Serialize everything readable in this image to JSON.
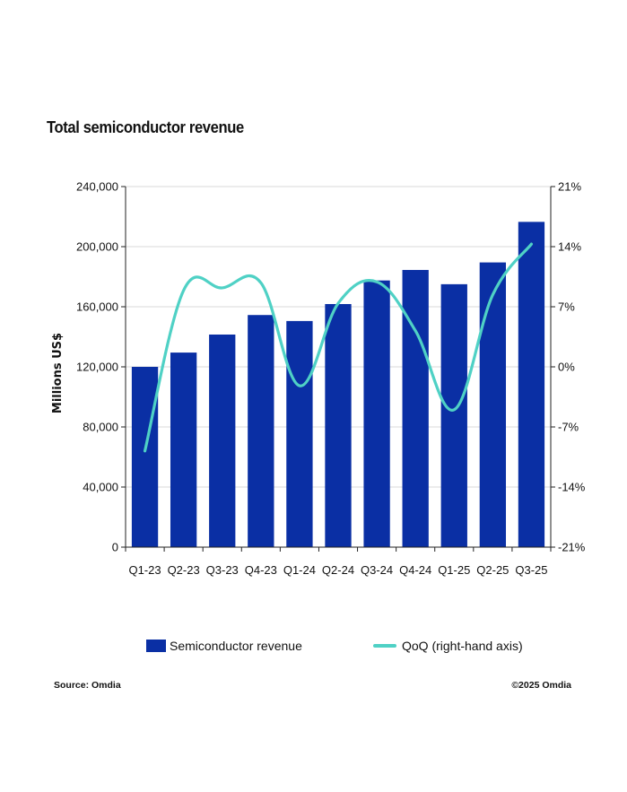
{
  "chart_data": {
    "type": "bar",
    "title": "Total semiconductor revenue",
    "categories": [
      "Q1-23",
      "Q2-23",
      "Q3-23",
      "Q4-23",
      "Q1-24",
      "Q2-24",
      "Q3-24",
      "Q4-24",
      "Q1-25",
      "Q2-25",
      "Q3-25"
    ],
    "series": [
      {
        "name": "Semiconductor revenue",
        "type": "bar",
        "axis": "left",
        "values": [
          120000,
          129500,
          141500,
          154500,
          150500,
          161800,
          177500,
          184500,
          175000,
          189500,
          216500
        ]
      },
      {
        "name": "QoQ (right-hand axis)",
        "type": "line",
        "axis": "right",
        "smooth": true,
        "values": [
          -9.8,
          8.9,
          9.2,
          9.8,
          -2.2,
          7.4,
          9.9,
          4.2,
          -5.0,
          8.4,
          14.3
        ]
      }
    ],
    "ylabel": "Millions US$",
    "ylim": [
      0,
      240000
    ],
    "yticks": [
      0,
      40000,
      80000,
      120000,
      160000,
      200000,
      240000
    ],
    "ytick_labels": [
      "0",
      "40,000",
      "80,000",
      "120,000",
      "160,000",
      "200,000",
      "240,000"
    ],
    "y2lim": [
      -21,
      21
    ],
    "y2ticks": [
      -21,
      -14,
      -7,
      0,
      7,
      14,
      21
    ],
    "y2tick_labels": [
      "-21%",
      "-14%",
      "-7%",
      "0%",
      "7%",
      "14%",
      "21%"
    ],
    "grid": "horizontal",
    "legend_position": "bottom",
    "colors": {
      "bar": "#0a2fa4",
      "line": "#4fd1c5",
      "grid": "#d9d9d9",
      "axis": "#222222"
    }
  },
  "footer": {
    "source": "Source: Omdia",
    "copyright": "©2025 Omdia"
  }
}
